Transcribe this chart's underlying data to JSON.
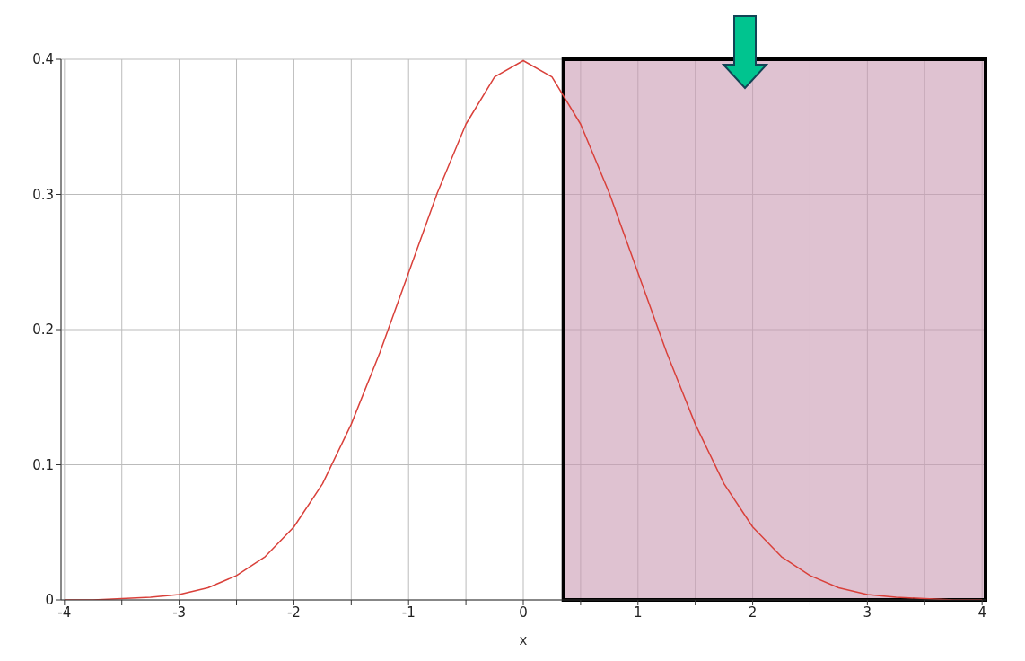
{
  "chart_data": {
    "type": "line",
    "xlabel": "x",
    "x": [
      -4,
      -3.75,
      -3.5,
      -3.25,
      -3,
      -2.75,
      -2.5,
      -2.25,
      -2,
      -1.75,
      -1.5,
      -1.25,
      -1,
      -0.75,
      -0.5,
      -0.25,
      0,
      0.25,
      0.5,
      0.75,
      1,
      1.25,
      1.5,
      1.75,
      2,
      2.25,
      2.5,
      2.75,
      3,
      3.25,
      3.5,
      3.75,
      4
    ],
    "series": [
      {
        "color": "#d9403a",
        "values": [
          0.0,
          0.0,
          0.001,
          0.002,
          0.004,
          0.009,
          0.018,
          0.032,
          0.054,
          0.086,
          0.13,
          0.183,
          0.242,
          0.301,
          0.352,
          0.387,
          0.399,
          0.387,
          0.352,
          0.301,
          0.242,
          0.183,
          0.13,
          0.086,
          0.054,
          0.032,
          0.018,
          0.009,
          0.004,
          0.002,
          0.001,
          0.0,
          0.0
        ]
      }
    ],
    "xlim": [
      -4.03,
      4.03
    ],
    "xticks": [
      -4,
      {
        "value": -3.5,
        "label": null
      },
      -3,
      {
        "value": -2.5,
        "label": null
      },
      -2,
      {
        "value": -1.5,
        "label": null
      },
      -1,
      {
        "value": -0.5,
        "label": null
      },
      0,
      {
        "value": 0.5,
        "label": null
      },
      1,
      {
        "value": 1.5,
        "label": null
      },
      2,
      {
        "value": 2.5,
        "label": null
      },
      3,
      {
        "value": 3.5,
        "label": null
      },
      4
    ],
    "ylim": [
      0,
      0.4
    ],
    "yticks": [
      0,
      0.1,
      0.2,
      0.3,
      0.4
    ],
    "grid": true,
    "legend": false,
    "marker": "none",
    "line_style": "solid",
    "bands": [
      {
        "axis": "x",
        "from": 0.35,
        "to": 4.03,
        "color": "#c99ab3"
      }
    ]
  }
}
